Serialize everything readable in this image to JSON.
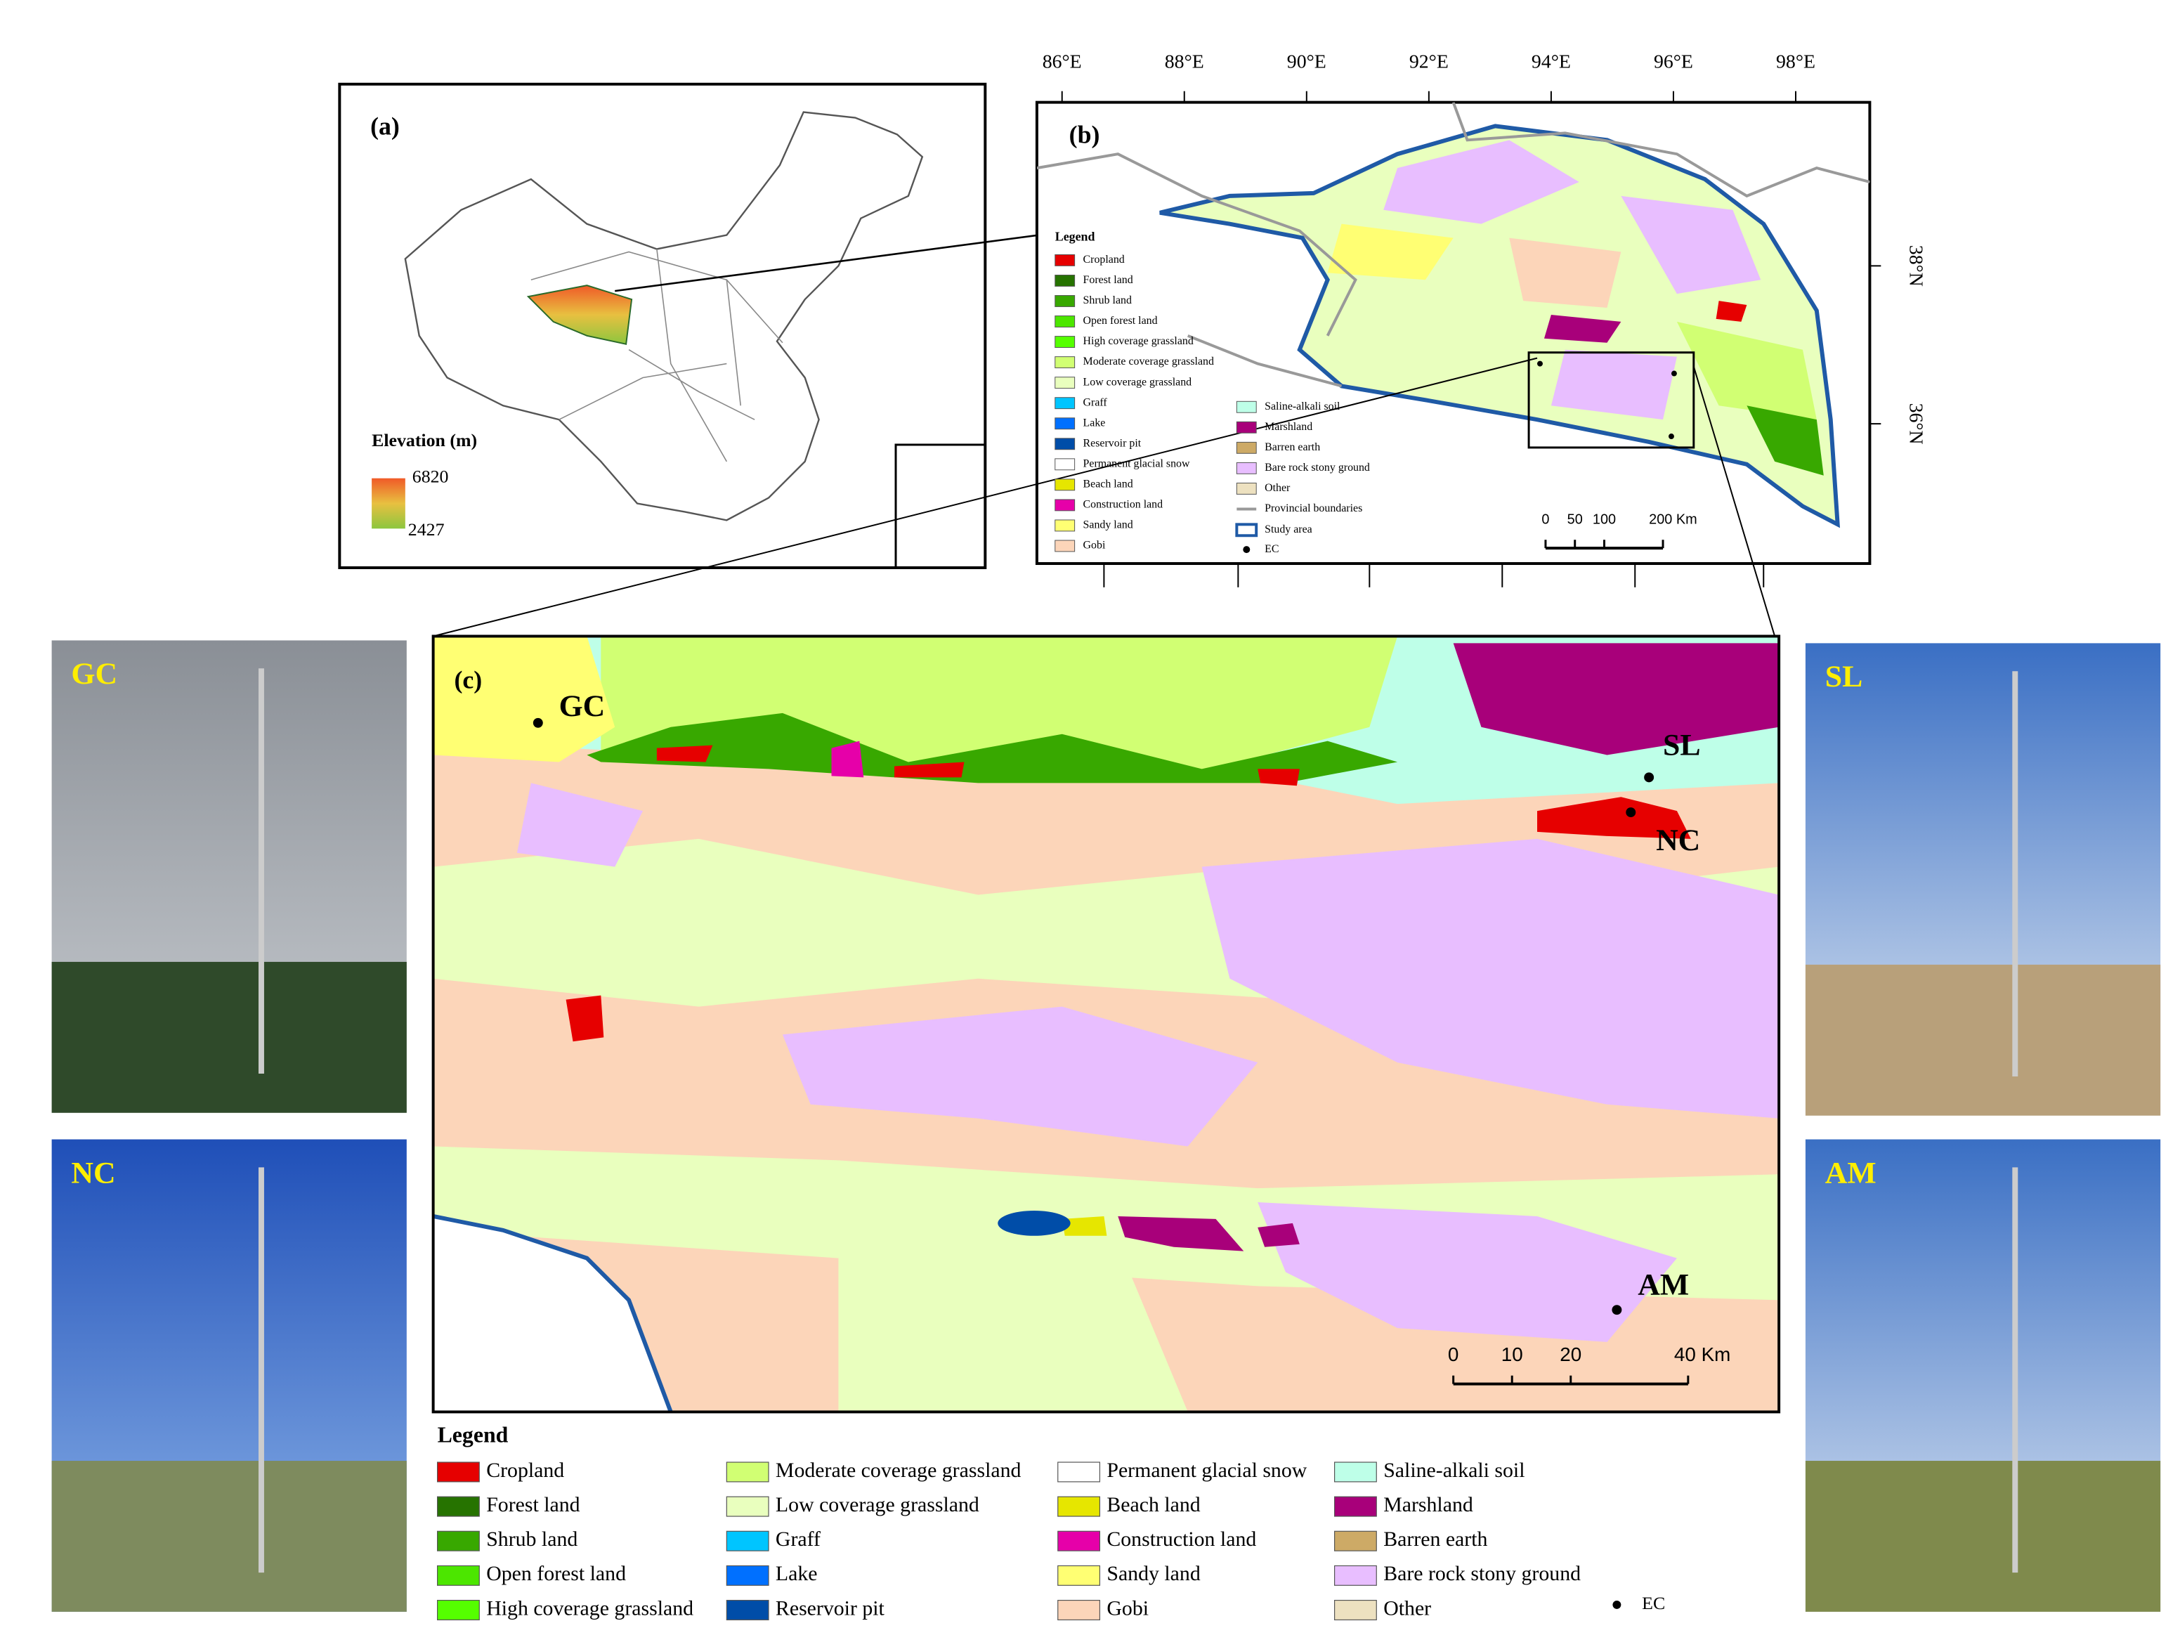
{
  "panel_a": {
    "label": "(a)",
    "elevation_legend": {
      "title": "Elevation (m)",
      "max": 6820,
      "min": 2427
    }
  },
  "panel_b": {
    "label": "(b)",
    "longitudes": [
      "86°E",
      "88°E",
      "90°E",
      "92°E",
      "94°E",
      "96°E",
      "98°E"
    ],
    "latitudes": [
      "38°N",
      "36°N"
    ],
    "legend_title": "Legend",
    "extra_legend": {
      "provincial_boundaries": "Provincial boundaries",
      "study_area": "Study area",
      "ec": "EC"
    },
    "scale_bar": [
      0,
      50,
      100,
      {
        "value": 200,
        "label": "200 Km"
      }
    ]
  },
  "panel_c": {
    "label": "(c)",
    "sites": [
      "GC",
      "SL",
      "NC",
      "AM"
    ],
    "scale_bar": [
      0,
      10,
      20,
      {
        "value": 40,
        "label": "40 Km"
      }
    ]
  },
  "photos": [
    "GC",
    "SL",
    "NC",
    "AM"
  ],
  "legend": {
    "title": "Legend",
    "ec": "EC"
  },
  "land_cover_classes": [
    {
      "name": "Cropland",
      "color": "#e60000"
    },
    {
      "name": "Forest land",
      "color": "#267300"
    },
    {
      "name": "Shrub land",
      "color": "#38a800"
    },
    {
      "name": "Open forest land",
      "color": "#4ce600"
    },
    {
      "name": "High coverage grassland",
      "color": "#55ff00"
    },
    {
      "name": "Moderate coverage grassland",
      "color": "#d1ff73"
    },
    {
      "name": "Low coverage grassland",
      "color": "#e9ffbe"
    },
    {
      "name": "Graff",
      "color": "#00c5ff"
    },
    {
      "name": "Lake",
      "color": "#0070ff"
    },
    {
      "name": "Reservoir pit",
      "color": "#004da8"
    },
    {
      "name": "Permanent glacial snow",
      "color": "#ffffff"
    },
    {
      "name": "Beach land",
      "color": "#e6e600"
    },
    {
      "name": "Construction land",
      "color": "#e600a9"
    },
    {
      "name": "Sandy land",
      "color": "#ffff73"
    },
    {
      "name": "Gobi",
      "color": "#fcd5b9"
    },
    {
      "name": "Saline-alkali soil",
      "color": "#beffe8"
    },
    {
      "name": "Marshland",
      "color": "#a8007a"
    },
    {
      "name": "Barren earth",
      "color": "#cdaa66"
    },
    {
      "name": "Bare rock stony ground",
      "color": "#e8beff"
    },
    {
      "name": "Other",
      "color": "#ede1c0"
    }
  ]
}
